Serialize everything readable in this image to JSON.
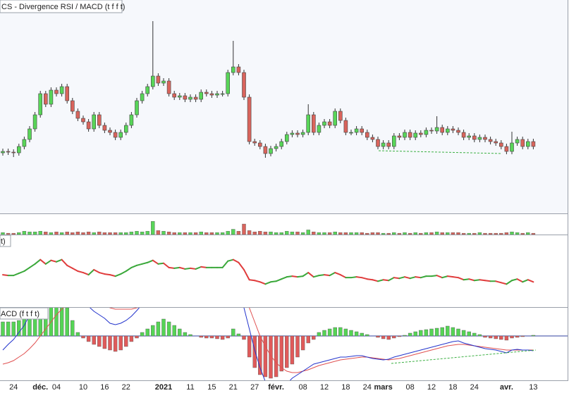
{
  "chart_data": {
    "type": "candlestick",
    "title": "CS - Divergence RSI / MACD (t f f t)",
    "categories": [
      null,
      null,
      "24",
      null,
      null,
      null,
      null,
      "déc.",
      null,
      null,
      "04",
      null,
      null,
      null,
      null,
      "10",
      null,
      null,
      null,
      "16",
      null,
      null,
      null,
      "22",
      null,
      null,
      null,
      null,
      null,
      null,
      "2021",
      null,
      null,
      null,
      null,
      "11",
      null,
      null,
      null,
      "15",
      null,
      null,
      null,
      "21",
      null,
      null,
      null,
      "27",
      null,
      null,
      null,
      "févr.",
      null,
      null,
      null,
      null,
      "08",
      null,
      null,
      null,
      "12",
      null,
      null,
      null,
      "18",
      null,
      null,
      null,
      "24",
      null,
      null,
      "mars",
      null,
      null,
      null,
      null,
      "08",
      null,
      null,
      null,
      "12",
      null,
      null,
      null,
      "18",
      null,
      null,
      null,
      "24",
      null,
      null,
      null,
      null,
      null,
      "avr.",
      null,
      null,
      null,
      null,
      "13"
    ],
    "open": [
      86,
      88,
      87,
      86,
      95,
      105,
      120,
      140,
      170,
      155,
      175,
      170,
      180,
      160,
      145,
      135,
      130,
      120,
      140,
      125,
      118,
      115,
      108,
      115,
      125,
      140,
      160,
      170,
      180,
      195,
      185,
      188,
      170,
      165,
      167,
      162,
      165,
      162,
      172,
      170,
      168,
      170,
      170,
      200,
      208,
      200,
      165,
      102,
      100,
      95,
      85,
      92,
      95,
      102,
      112,
      114,
      112,
      115,
      140,
      115,
      125,
      130,
      125,
      145,
      132,
      115,
      115,
      120,
      115,
      108,
      105,
      95,
      100,
      95,
      110,
      108,
      115,
      108,
      114,
      112,
      118,
      117,
      122,
      115,
      120,
      118,
      115,
      108,
      110,
      105,
      108,
      105,
      102,
      100,
      95,
      88,
      100,
      105,
      95,
      102
    ],
    "high": [
      92,
      92,
      91,
      99,
      109,
      124,
      144,
      174,
      174,
      179,
      179,
      184,
      184,
      164,
      149,
      139,
      134,
      144,
      144,
      129,
      122,
      119,
      119,
      129,
      144,
      164,
      174,
      184,
      273,
      199,
      192,
      192,
      174,
      171,
      171,
      169,
      169,
      176,
      176,
      174,
      174,
      174,
      204,
      245,
      212,
      204,
      169,
      106,
      104,
      99,
      96,
      99,
      106,
      116,
      118,
      118,
      119,
      155,
      144,
      129,
      134,
      134,
      149,
      149,
      136,
      119,
      124,
      124,
      119,
      112,
      109,
      104,
      104,
      114,
      114,
      119,
      119,
      118,
      118,
      122,
      122,
      138,
      126,
      124,
      124,
      122,
      119,
      114,
      114,
      112,
      112,
      109,
      106,
      104,
      99,
      116,
      109,
      109,
      106,
      106
    ],
    "low": [
      82,
      83,
      80,
      82,
      91,
      101,
      116,
      136,
      151,
      151,
      166,
      166,
      156,
      141,
      131,
      126,
      116,
      116,
      121,
      114,
      111,
      104,
      104,
      111,
      121,
      136,
      156,
      166,
      176,
      181,
      181,
      166,
      161,
      161,
      158,
      158,
      158,
      158,
      166,
      164,
      164,
      166,
      166,
      196,
      196,
      161,
      98,
      96,
      91,
      79,
      81,
      88,
      91,
      98,
      108,
      108,
      108,
      111,
      111,
      111,
      121,
      121,
      121,
      128,
      111,
      111,
      111,
      111,
      104,
      101,
      91,
      91,
      91,
      91,
      104,
      104,
      104,
      104,
      108,
      108,
      113,
      113,
      111,
      111,
      114,
      111,
      104,
      104,
      101,
      101,
      101,
      98,
      96,
      91,
      84,
      84,
      96,
      91,
      91,
      91
    ],
    "close": [
      88,
      87,
      86,
      95,
      105,
      120,
      140,
      170,
      155,
      175,
      170,
      180,
      160,
      145,
      135,
      130,
      120,
      140,
      125,
      118,
      115,
      108,
      115,
      125,
      140,
      160,
      170,
      180,
      195,
      185,
      188,
      170,
      165,
      167,
      162,
      165,
      162,
      172,
      170,
      168,
      170,
      170,
      200,
      208,
      200,
      165,
      102,
      100,
      95,
      85,
      92,
      95,
      102,
      112,
      114,
      112,
      115,
      140,
      115,
      125,
      130,
      125,
      145,
      132,
      115,
      115,
      120,
      115,
      108,
      105,
      95,
      100,
      95,
      110,
      108,
      115,
      108,
      114,
      112,
      118,
      117,
      122,
      115,
      120,
      118,
      115,
      108,
      110,
      105,
      108,
      105,
      102,
      100,
      95,
      88,
      100,
      105,
      95,
      102,
      95
    ],
    "ylim": [
      0,
      303
    ],
    "up_color": "#58d558",
    "down_color": "#d9645c",
    "volume": {
      "values": [
        3,
        2,
        2,
        3,
        5,
        4,
        4,
        5,
        4,
        3,
        4,
        3,
        4,
        3,
        4,
        3,
        4,
        3,
        4,
        3,
        3,
        3,
        3,
        3,
        4,
        5,
        4,
        5,
        20,
        6,
        5,
        4,
        3,
        3,
        3,
        3,
        3,
        4,
        3,
        3,
        3,
        3,
        5,
        8,
        5,
        16,
        6,
        4,
        5,
        4,
        4,
        3,
        3,
        5,
        4,
        4,
        3,
        7,
        4,
        3,
        3,
        3,
        4,
        3,
        3,
        3,
        3,
        3,
        2,
        3,
        3,
        2,
        2,
        3,
        2,
        3,
        2,
        3,
        2,
        3,
        3,
        4,
        3,
        3,
        3,
        3,
        2,
        2,
        2,
        3,
        2,
        2,
        2,
        2,
        3,
        4,
        3,
        2,
        3,
        2
      ],
      "ylim": [
        0,
        30
      ]
    },
    "rsi": {
      "label": "t)",
      "ylim": [
        0,
        100
      ],
      "rising_color": "#3aa83a",
      "falling_color": "#e03c3c",
      "values": [
        45,
        44,
        44,
        47,
        50,
        55,
        60,
        66,
        60,
        65,
        63,
        66,
        58,
        54,
        50,
        48,
        45,
        52,
        48,
        46,
        45,
        43,
        46,
        50,
        55,
        58,
        60,
        62,
        65,
        60,
        61,
        55,
        54,
        55,
        53,
        54,
        53,
        56,
        55,
        55,
        55,
        55,
        64,
        66,
        62,
        52,
        38,
        37,
        35,
        32,
        35,
        36,
        39,
        42,
        43,
        42,
        43,
        48,
        42,
        44,
        45,
        44,
        48,
        45,
        41,
        41,
        42,
        41,
        39,
        38,
        36,
        38,
        37,
        41,
        40,
        42,
        40,
        42,
        41,
        43,
        43,
        44,
        41,
        43,
        42,
        41,
        38,
        39,
        37,
        38,
        37,
        36,
        36,
        34,
        32,
        37,
        39,
        35,
        38,
        35
      ]
    },
    "macd": {
      "label": "ACD (f t f t)",
      "ylim": [
        -63,
        40
      ],
      "positive_color": "#55d455",
      "negative_color": "#e05a5a",
      "zero_color": "#3040a0",
      "histogram": [
        20,
        20,
        20,
        22,
        25,
        28,
        35,
        45,
        45,
        45,
        45,
        45,
        40,
        22,
        5,
        -3,
        -8,
        -12,
        -15,
        -18,
        -20,
        -22,
        -20,
        -15,
        -8,
        -3,
        5,
        10,
        15,
        20,
        24,
        20,
        15,
        10,
        5,
        2,
        0,
        -2,
        -3,
        -3,
        -4,
        -5,
        -3,
        10,
        3,
        -5,
        -30,
        -45,
        -55,
        -58,
        -60,
        -58,
        -50,
        -45,
        -40,
        -30,
        -20,
        -10,
        -5,
        5,
        8,
        10,
        12,
        12,
        10,
        8,
        6,
        4,
        2,
        0,
        -2,
        -4,
        -5,
        -3,
        -1,
        1,
        4,
        6,
        8,
        9,
        10,
        11,
        12,
        14,
        12,
        10,
        8,
        6,
        4,
        2,
        -2,
        -3,
        -4,
        -5,
        -6,
        -3,
        -2,
        -1,
        0,
        1
      ],
      "macd_color": "#2233cc",
      "signal_color": "#e05050",
      "macd": [
        -20,
        -12,
        -5,
        5,
        15,
        30,
        45,
        60,
        70,
        75,
        78,
        80,
        78,
        72,
        62,
        52,
        42,
        35,
        30,
        25,
        18,
        16,
        18,
        22,
        28,
        36,
        45,
        55,
        68,
        75,
        78,
        78,
        76,
        74,
        72,
        70,
        70,
        68,
        66,
        65,
        64,
        62,
        65,
        70,
        60,
        40,
        10,
        -20,
        -45,
        -65,
        -75,
        -80,
        -75,
        -68,
        -60,
        -55,
        -50,
        -45,
        -40,
        -38,
        -36,
        -34,
        -32,
        -30,
        -30,
        -29,
        -28,
        -28,
        -30,
        -32,
        -33,
        -34,
        -33,
        -30,
        -28,
        -26,
        -24,
        -22,
        -20,
        -18,
        -16,
        -14,
        -12,
        -10,
        -8,
        -7,
        -10,
        -12,
        -14,
        -16,
        -18,
        -19,
        -20,
        -22,
        -24,
        -20,
        -19,
        -20,
        -20,
        -21
      ],
      "signal": [
        -40,
        -38,
        -35,
        -30,
        -25,
        -18,
        -10,
        0,
        10,
        20,
        30,
        38,
        45,
        50,
        55,
        56,
        55,
        52,
        48,
        44,
        40,
        38,
        38,
        38,
        38,
        40,
        42,
        45,
        50,
        55,
        58,
        60,
        62,
        63,
        64,
        64,
        64,
        64,
        64,
        64,
        64,
        63,
        62,
        62,
        61,
        55,
        40,
        20,
        0,
        -15,
        -28,
        -38,
        -45,
        -50,
        -52,
        -52,
        -50,
        -48,
        -45,
        -42,
        -40,
        -38,
        -36,
        -34,
        -33,
        -32,
        -31,
        -30,
        -30,
        -31,
        -32,
        -33,
        -34,
        -33,
        -32,
        -30,
        -28,
        -26,
        -24,
        -22,
        -20,
        -18,
        -16,
        -14,
        -13,
        -12,
        -12,
        -13,
        -14,
        -15,
        -16,
        -17,
        -18,
        -19,
        -20,
        -20,
        -20,
        -20,
        -20,
        -20
      ]
    }
  }
}
